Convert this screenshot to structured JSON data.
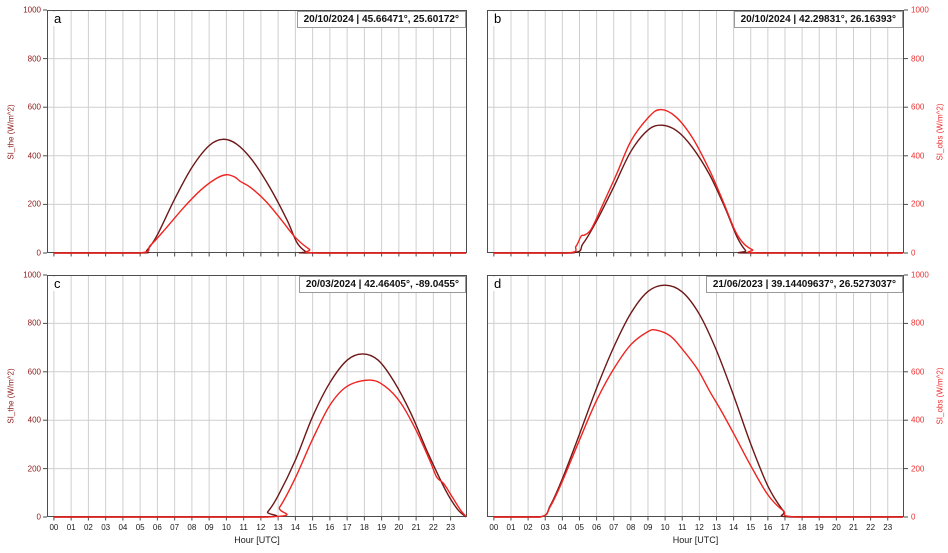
{
  "colors": {
    "si_the": "#6e1717",
    "si_obs": "#ee2420",
    "left_axis_text": "#8b1a1a",
    "right_axis_text": "#f03030",
    "grid": "#cfcfcf",
    "spine": "#4d4d4d",
    "tick_text": "#1a1a1a"
  },
  "axes": {
    "xlabel": "Hour [UTC]",
    "ylabel_left": "SI_the (W/m^2)",
    "ylabel_right": "SI_obs (W/m^2)",
    "ylim": [
      0,
      1000
    ],
    "yticks": [
      0,
      200,
      400,
      600,
      800,
      1000
    ],
    "xtick_labels": [
      "00",
      "01",
      "02",
      "03",
      "04",
      "05",
      "06",
      "07",
      "08",
      "09",
      "10",
      "11",
      "12",
      "13",
      "14",
      "15",
      "16",
      "17",
      "18",
      "19",
      "20",
      "21",
      "22",
      "23"
    ],
    "grid": true
  },
  "chart_data": [
    {
      "type": "line",
      "panel_label": "a",
      "annotation": "20/10/2024 | 45.66471°, 25.60172°",
      "xlabel": "Hour [UTC]",
      "ylim": [
        0,
        1000
      ],
      "series": [
        {
          "name": "SI_the",
          "color": "#6e1717",
          "points": [
            [
              0,
              0
            ],
            [
              5.0,
              0
            ],
            [
              5.4,
              12
            ],
            [
              6,
              75
            ],
            [
              7,
              222
            ],
            [
              8,
              352
            ],
            [
              9,
              442
            ],
            [
              9.8,
              468
            ],
            [
              10.6,
              448
            ],
            [
              11.5,
              382
            ],
            [
              12.5,
              272
            ],
            [
              13.5,
              138
            ],
            [
              14.1,
              42
            ],
            [
              14.6,
              6
            ],
            [
              15.0,
              0
            ],
            [
              23.9,
              0
            ]
          ]
        },
        {
          "name": "SI_obs",
          "color": "#ee2420",
          "points": [
            [
              0,
              0
            ],
            [
              4.9,
              0
            ],
            [
              5.6,
              32
            ],
            [
              6.5,
              102
            ],
            [
              7.5,
              185
            ],
            [
              8.5,
              258
            ],
            [
              9.4,
              306
            ],
            [
              10.0,
              322
            ],
            [
              10.5,
              312
            ],
            [
              10.8,
              295
            ],
            [
              11.4,
              270
            ],
            [
              12.3,
              212
            ],
            [
              13.2,
              135
            ],
            [
              14.0,
              64
            ],
            [
              14.8,
              16
            ],
            [
              15.4,
              0
            ],
            [
              23.9,
              0
            ]
          ]
        }
      ]
    },
    {
      "type": "line",
      "panel_label": "b",
      "annotation": "20/10/2024 | 42.29831°, 26.16393°",
      "xlabel": "Hour [UTC]",
      "ylim": [
        0,
        1000
      ],
      "series": [
        {
          "name": "SI_the",
          "color": "#6e1717",
          "points": [
            [
              0,
              0
            ],
            [
              4.5,
              0
            ],
            [
              5.2,
              38
            ],
            [
              6,
              132
            ],
            [
              7,
              272
            ],
            [
              8,
              418
            ],
            [
              9,
              506
            ],
            [
              9.8,
              526
            ],
            [
              10.7,
              502
            ],
            [
              11.6,
              434
            ],
            [
              12.6,
              322
            ],
            [
              13.5,
              186
            ],
            [
              14.2,
              66
            ],
            [
              14.7,
              10
            ],
            [
              15.0,
              0
            ],
            [
              23.9,
              0
            ]
          ]
        },
        {
          "name": "SI_obs",
          "color": "#ee2420",
          "points": [
            [
              0,
              0
            ],
            [
              4.3,
              0
            ],
            [
              4.8,
              28
            ],
            [
              5.1,
              70
            ],
            [
              5.3,
              74
            ],
            [
              5.7,
              100
            ],
            [
              6.4,
              205
            ],
            [
              7.2,
              330
            ],
            [
              8,
              460
            ],
            [
              9,
              556
            ],
            [
              9.7,
              590
            ],
            [
              10.6,
              562
            ],
            [
              11.6,
              474
            ],
            [
              12.6,
              340
            ],
            [
              13.4,
              210
            ],
            [
              14.1,
              90
            ],
            [
              14.6,
              38
            ],
            [
              15.1,
              13
            ],
            [
              15.6,
              0
            ],
            [
              23.9,
              0
            ]
          ]
        }
      ]
    },
    {
      "type": "line",
      "panel_label": "c",
      "annotation": "20/03/2024 | 42.46405°, -89.0455°",
      "xlabel": "Hour [UTC]",
      "ylim": [
        0,
        1000
      ],
      "series": [
        {
          "name": "SI_the",
          "color": "#6e1717",
          "points": [
            [
              0,
              0
            ],
            [
              11.9,
              0
            ],
            [
              12.4,
              22
            ],
            [
              13,
              88
            ],
            [
              14,
              235
            ],
            [
              15,
              415
            ],
            [
              16,
              555
            ],
            [
              17,
              648
            ],
            [
              17.9,
              674
            ],
            [
              18.8,
              648
            ],
            [
              19.7,
              562
            ],
            [
              20.7,
              428
            ],
            [
              21.7,
              262
            ],
            [
              22.7,
              112
            ],
            [
              23.4,
              32
            ],
            [
              23.9,
              0
            ]
          ]
        },
        {
          "name": "SI_obs",
          "color": "#ee2420",
          "points": [
            [
              0,
              0
            ],
            [
              12.4,
              0
            ],
            [
              13.1,
              42
            ],
            [
              14,
              162
            ],
            [
              15,
              322
            ],
            [
              16,
              462
            ],
            [
              17,
              540
            ],
            [
              18.3,
              566
            ],
            [
              19.2,
              540
            ],
            [
              20.1,
              472
            ],
            [
              21,
              358
            ],
            [
              21.8,
              232
            ],
            [
              22.2,
              164
            ],
            [
              22.6,
              138
            ],
            [
              23.1,
              82
            ],
            [
              23.6,
              26
            ],
            [
              23.9,
              2
            ]
          ]
        }
      ]
    },
    {
      "type": "line",
      "panel_label": "d",
      "annotation": "21/06/2023 | 39.14409637°, 26.5273037°",
      "xlabel": "Hour [UTC]",
      "ylim": [
        0,
        1000
      ],
      "series": [
        {
          "name": "SI_the",
          "color": "#6e1717",
          "points": [
            [
              0,
              0
            ],
            [
              2.7,
              0
            ],
            [
              3.3,
              48
            ],
            [
              4,
              158
            ],
            [
              5,
              342
            ],
            [
              6,
              532
            ],
            [
              7,
              702
            ],
            [
              8,
              842
            ],
            [
              9,
              932
            ],
            [
              10,
              958
            ],
            [
              11,
              930
            ],
            [
              12,
              838
            ],
            [
              13,
              688
            ],
            [
              14,
              502
            ],
            [
              15,
              302
            ],
            [
              16,
              128
            ],
            [
              16.9,
              26
            ],
            [
              17.4,
              0
            ],
            [
              23.9,
              0
            ]
          ]
        },
        {
          "name": "SI_obs",
          "color": "#ee2420",
          "points": [
            [
              0,
              0
            ],
            [
              2.7,
              0
            ],
            [
              3.3,
              44
            ],
            [
              4,
              148
            ],
            [
              5,
              318
            ],
            [
              6,
              482
            ],
            [
              7,
              612
            ],
            [
              8,
              712
            ],
            [
              9,
              766
            ],
            [
              9.5,
              772
            ],
            [
              10.3,
              748
            ],
            [
              11,
              694
            ],
            [
              11.9,
              610
            ],
            [
              12.6,
              520
            ],
            [
              13.3,
              436
            ],
            [
              14.1,
              332
            ],
            [
              15,
              212
            ],
            [
              16,
              92
            ],
            [
              16.9,
              26
            ],
            [
              17.7,
              0
            ],
            [
              23.9,
              0
            ]
          ]
        }
      ]
    }
  ]
}
